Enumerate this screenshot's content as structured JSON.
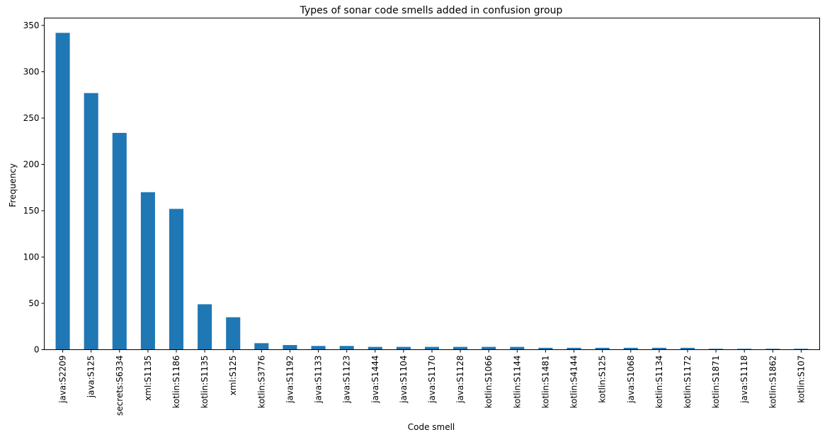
{
  "chart_data": {
    "type": "bar",
    "title": "Types of sonar code smells added in confusion group",
    "xlabel": "Code smell",
    "ylabel": "Frequency",
    "ylim": [
      0,
      358
    ],
    "yticks": [
      0,
      50,
      100,
      150,
      200,
      250,
      300,
      350
    ],
    "grid": false,
    "legend": "none",
    "bar_color": "#1f77b4",
    "categories": [
      "java:S2209",
      "java:S125",
      "secrets:S6334",
      "xml:S1135",
      "kotlin:S1186",
      "kotlin:S1135",
      "xml:S125",
      "kotlin:S3776",
      "java:S1192",
      "java:S1133",
      "java:S1123",
      "java:S1444",
      "java:S1104",
      "java:S1170",
      "java:S1128",
      "kotlin:S1066",
      "kotlin:S1144",
      "kotlin:S1481",
      "kotlin:S4144",
      "kotlin:S125",
      "java:S1068",
      "kotlin:S1134",
      "kotlin:S1172",
      "kotlin:S1871",
      "java:S1118",
      "kotlin:S1862",
      "kotlin:S107"
    ],
    "values": [
      342,
      277,
      234,
      170,
      152,
      49,
      35,
      7,
      5,
      4,
      4,
      3,
      3,
      3,
      3,
      3,
      3,
      2,
      2,
      2,
      2,
      2,
      2,
      1,
      1,
      1,
      1
    ]
  }
}
